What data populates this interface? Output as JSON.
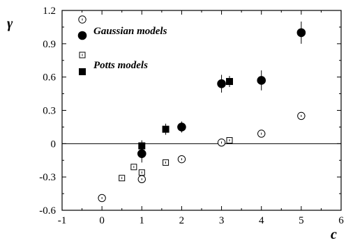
{
  "chart_data": {
    "type": "scatter",
    "title": "",
    "xlabel": "c",
    "ylabel": "γ",
    "xlim": [
      -1,
      6
    ],
    "ylim": [
      -0.6,
      1.2
    ],
    "x_ticks": [
      "-1",
      "0",
      "1",
      "2",
      "3",
      "4",
      "5",
      "6"
    ],
    "y_ticks": [
      "-0.6",
      "-0.3",
      "0",
      "0.3",
      "0.6",
      "0.9",
      "1.2"
    ],
    "reference_line_y": 0,
    "legend_placement": "top-left",
    "series": [
      {
        "marker": "open-circle",
        "points": [
          {
            "x": 0,
            "y": -0.49
          },
          {
            "x": 1,
            "y": -0.32
          },
          {
            "x": 2,
            "y": -0.14
          },
          {
            "x": 3,
            "y": 0.01
          },
          {
            "x": 4,
            "y": 0.09
          },
          {
            "x": 5,
            "y": 0.25
          }
        ]
      },
      {
        "marker": "filled-circle",
        "points": [
          {
            "x": 1,
            "y": -0.09,
            "err": 0.08
          },
          {
            "x": 2,
            "y": 0.15,
            "err": 0.05
          },
          {
            "x": 3,
            "y": 0.54,
            "err": 0.08
          },
          {
            "x": 4,
            "y": 0.57,
            "err": 0.09
          },
          {
            "x": 5,
            "y": 1.0,
            "err": 0.1
          }
        ]
      },
      {
        "marker": "open-square",
        "points": [
          {
            "x": 0.5,
            "y": -0.31
          },
          {
            "x": 0.8,
            "y": -0.21
          },
          {
            "x": 1,
            "y": -0.26
          },
          {
            "x": 1.6,
            "y": -0.17
          },
          {
            "x": 3.2,
            "y": 0.03
          }
        ]
      },
      {
        "marker": "filled-square",
        "points": [
          {
            "x": 1,
            "y": -0.02,
            "err": 0.05
          },
          {
            "x": 1.6,
            "y": 0.13,
            "err": 0.05
          },
          {
            "x": 3.2,
            "y": 0.56,
            "err": 0.05
          }
        ]
      }
    ],
    "legend": [
      {
        "marker": "open-circle",
        "label": ""
      },
      {
        "marker": "filled-circle",
        "label": "Gaussian models"
      },
      {
        "marker": "open-square",
        "label": ""
      },
      {
        "marker": "filled-square",
        "label": "Potts models"
      }
    ]
  }
}
